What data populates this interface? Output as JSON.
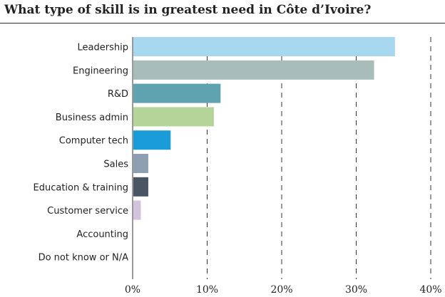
{
  "chart_data": {
    "type": "bar",
    "orientation": "horizontal",
    "title": "What type of skill is in greatest need in Côte d’Ivoire?",
    "categories": [
      "Leadership",
      "Engineering",
      "R&D",
      "Business admin",
      "Computer tech",
      "Sales",
      "Education & training",
      "Customer service",
      "Accounting",
      "Do not know or N/A"
    ],
    "values": [
      35.2,
      32.4,
      11.8,
      10.9,
      5.1,
      2.1,
      2.1,
      1.1,
      0,
      0
    ],
    "colors": [
      "#a8d8f0",
      "#a8bdba",
      "#5fa3b0",
      "#b5d49a",
      "#1a9cd8",
      "#8e9fb1",
      "#4a5563",
      "#d3c4dd",
      "#cccccc",
      "#cccccc"
    ],
    "xlim": [
      0,
      40
    ],
    "xticks": [
      0,
      10,
      20,
      30,
      40
    ],
    "xtick_labels": [
      "0%",
      "10%",
      "20%",
      "30%",
      "40%"
    ],
    "grid": "vertical dashed",
    "xlabel": "",
    "ylabel": ""
  }
}
